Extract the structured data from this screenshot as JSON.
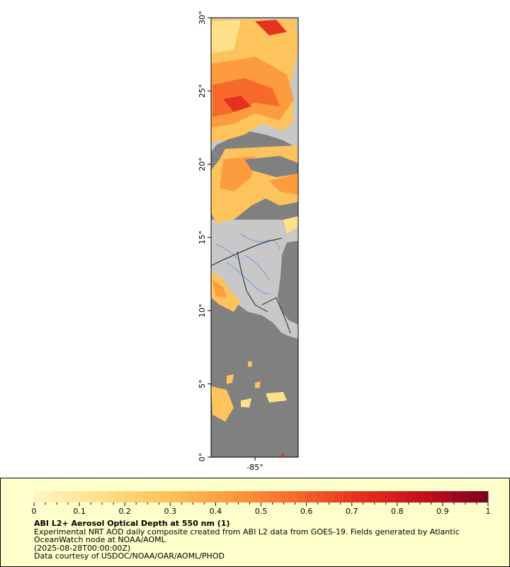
{
  "map": {
    "lat_ticks": [
      "0°",
      "5°",
      "10°",
      "15°",
      "20°",
      "25°",
      "30°"
    ],
    "lon_ticks": [
      "-85°"
    ],
    "lat_range": [
      0,
      30
    ],
    "colors": {
      "land": "#c8c8c8",
      "no_data": "#808080",
      "coast": "#555555",
      "borders": "#222222",
      "rivers": "#6d9bd8"
    }
  },
  "legend": {
    "ticks": [
      "0",
      "0.1",
      "0.2",
      "0.3",
      "0.4",
      "0.5",
      "0.6",
      "0.7",
      "0.8",
      "0.9",
      "1"
    ],
    "range": [
      0,
      1
    ],
    "colors": [
      "#fff5c4",
      "#ffe08a",
      "#fdc35c",
      "#fc9c3f",
      "#f76a2c",
      "#e5321f",
      "#c4101e",
      "#7a0020"
    ],
    "title": "ABI L2+ Aerosol Optical Depth at 550 nm (1)",
    "description": "Experimental NRT AOD daily composite created from ABI L2 data from GOES-19. Fields generated by Atlantic OceanWatch node at NOAA/AOML",
    "time": "(2025-08-28T00:00:00Z)",
    "credit": "Data courtesy of USDOC/NOAA/OAR/AOML/PHOD"
  }
}
